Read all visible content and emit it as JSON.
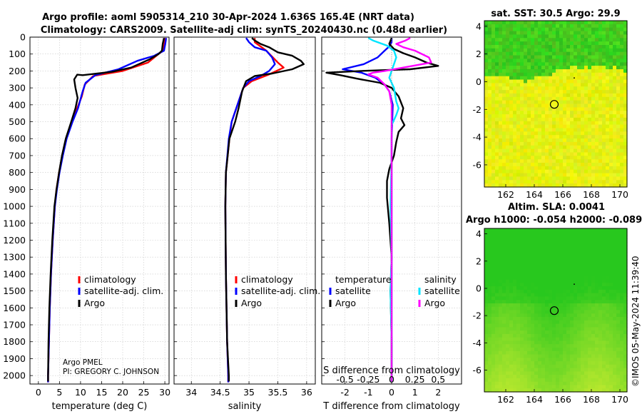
{
  "title": {
    "line1": "Argo profile: aoml 5905314_210 30-Apr-2024 1.636S 165.4E (NRT data)",
    "line2": "Climatology: CARS2009. Satellite-adj clim: synTS_20240430.nc (0.48d earlier)"
  },
  "colors": {
    "climatology": "#ff0000",
    "satellite": "#0000ff",
    "argo": "#000000",
    "sal_satellite": "#00e5ff",
    "sal_argo": "#ff00ff",
    "grid": "#b0b0b0"
  },
  "chart_data": [
    {
      "id": "temperature",
      "type": "line",
      "xlabel": "temperature (deg C)",
      "xlim": [
        -2,
        31
      ],
      "xticks": [
        0,
        5,
        10,
        15,
        20,
        25,
        30
      ],
      "ylim": [
        0,
        2050
      ],
      "yticks": [
        0,
        100,
        200,
        300,
        400,
        500,
        600,
        700,
        800,
        900,
        1000,
        1100,
        1200,
        1300,
        1400,
        1500,
        1600,
        1700,
        1800,
        1900,
        2000
      ],
      "legend": [
        "climatology",
        "satellite-adj. clim.",
        "Argo"
      ],
      "credit": [
        "Argo PMEL",
        "PI: GREGORY C. JOHNSON"
      ],
      "series": [
        {
          "name": "climatology",
          "color": "#ff0000",
          "points": [
            [
              30,
              5
            ],
            [
              29.9,
              40
            ],
            [
              29.6,
              80
            ],
            [
              28.5,
              100
            ],
            [
              26,
              150
            ],
            [
              20,
              200
            ],
            [
              13,
              230
            ],
            [
              11,
              280
            ],
            [
              10.3,
              350
            ],
            [
              9.2,
              420
            ],
            [
              8,
              500
            ],
            [
              6.6,
              600
            ],
            [
              5.7,
              700
            ],
            [
              4.9,
              800
            ],
            [
              4.3,
              900
            ],
            [
              3.9,
              1000
            ],
            [
              3.4,
              1200
            ],
            [
              3,
              1400
            ],
            [
              2.7,
              1600
            ],
            [
              2.5,
              1800
            ],
            [
              2.3,
              2000
            ],
            [
              2.3,
              2040
            ]
          ]
        },
        {
          "name": "satellite-adj. clim.",
          "color": "#0000ff",
          "points": [
            [
              30.3,
              5
            ],
            [
              30.1,
              40
            ],
            [
              29.8,
              80
            ],
            [
              27.5,
              110
            ],
            [
              23.5,
              140
            ],
            [
              19,
              190
            ],
            [
              13.5,
              225
            ],
            [
              11.2,
              270
            ],
            [
              10.5,
              320
            ],
            [
              9.4,
              420
            ],
            [
              8.1,
              500
            ],
            [
              6.7,
              600
            ],
            [
              5.8,
              700
            ],
            [
              5,
              800
            ],
            [
              4.4,
              900
            ],
            [
              3.9,
              1000
            ],
            [
              3.4,
              1200
            ],
            [
              3,
              1400
            ],
            [
              2.7,
              1600
            ],
            [
              2.5,
              1800
            ],
            [
              2.3,
              2000
            ],
            [
              2.3,
              2040
            ]
          ]
        },
        {
          "name": "Argo",
          "color": "#000000",
          "points": [
            [
              29.8,
              5
            ],
            [
              29.5,
              40
            ],
            [
              29.3,
              80
            ],
            [
              28.5,
              100
            ],
            [
              26.5,
              130
            ],
            [
              22,
              180
            ],
            [
              17.5,
              205
            ],
            [
              14,
              215
            ],
            [
              10.5,
              225
            ],
            [
              9.2,
              222
            ],
            [
              8.5,
              250
            ],
            [
              8.8,
              300
            ],
            [
              9.3,
              360
            ],
            [
              8.8,
              420
            ],
            [
              7.8,
              500
            ],
            [
              6.5,
              600
            ],
            [
              5.6,
              700
            ],
            [
              4.9,
              800
            ],
            [
              4.3,
              900
            ],
            [
              3.8,
              1000
            ],
            [
              3.3,
              1200
            ],
            [
              2.9,
              1400
            ],
            [
              2.6,
              1600
            ],
            [
              2.4,
              1800
            ],
            [
              2.3,
              2000
            ],
            [
              2.3,
              2035
            ]
          ]
        }
      ]
    },
    {
      "id": "salinity",
      "type": "line",
      "xlabel": "salinity",
      "xlim": [
        33.7,
        36.15
      ],
      "xticks": [
        34,
        34.5,
        35,
        35.5,
        36
      ],
      "ylim": [
        0,
        2050
      ],
      "legend": [
        "climatology",
        "satellite-adj. clim.",
        "Argo"
      ],
      "series": [
        {
          "name": "climatology",
          "color": "#ff0000",
          "points": [
            [
              35.1,
              5
            ],
            [
              35.1,
              30
            ],
            [
              35.2,
              55
            ],
            [
              35.3,
              80
            ],
            [
              35.5,
              150
            ],
            [
              35.6,
              180
            ],
            [
              35.35,
              220
            ],
            [
              35.05,
              260
            ],
            [
              34.9,
              300
            ],
            [
              34.8,
              400
            ],
            [
              34.7,
              500
            ],
            [
              34.66,
              600
            ],
            [
              34.6,
              800
            ],
            [
              34.59,
              1000
            ],
            [
              34.6,
              1400
            ],
            [
              34.62,
              1800
            ],
            [
              34.64,
              2000
            ],
            [
              34.64,
              2040
            ]
          ]
        },
        {
          "name": "satellite-adj. clim.",
          "color": "#0000ff",
          "points": [
            [
              34.95,
              5
            ],
            [
              35.0,
              30
            ],
            [
              35.1,
              60
            ],
            [
              35.3,
              80
            ],
            [
              35.4,
              120
            ],
            [
              35.45,
              160
            ],
            [
              35.35,
              200
            ],
            [
              35.2,
              230
            ],
            [
              35.0,
              260
            ],
            [
              34.9,
              300
            ],
            [
              34.8,
              400
            ],
            [
              34.7,
              500
            ],
            [
              34.65,
              600
            ],
            [
              34.6,
              800
            ],
            [
              34.59,
              1000
            ],
            [
              34.6,
              1400
            ],
            [
              34.62,
              1800
            ],
            [
              34.64,
              2000
            ],
            [
              34.64,
              2040
            ]
          ]
        },
        {
          "name": "Argo",
          "color": "#000000",
          "points": [
            [
              35.05,
              5
            ],
            [
              35.1,
              20
            ],
            [
              35.2,
              40
            ],
            [
              35.35,
              60
            ],
            [
              35.5,
              90
            ],
            [
              35.75,
              110
            ],
            [
              35.9,
              140
            ],
            [
              35.95,
              160
            ],
            [
              35.75,
              190
            ],
            [
              35.4,
              215
            ],
            [
              35.1,
              230
            ],
            [
              34.95,
              260
            ],
            [
              34.88,
              320
            ],
            [
              34.82,
              420
            ],
            [
              34.76,
              500
            ],
            [
              34.7,
              560
            ],
            [
              34.66,
              600
            ],
            [
              34.63,
              700
            ],
            [
              34.6,
              800
            ],
            [
              34.59,
              1000
            ],
            [
              34.6,
              1400
            ],
            [
              34.62,
              1800
            ],
            [
              34.65,
              2000
            ],
            [
              34.65,
              2035
            ]
          ]
        }
      ]
    },
    {
      "id": "difference",
      "type": "line",
      "xlabel": "T difference from climatology",
      "xlabel_top": "S difference from climatology",
      "xlim": [
        -3,
        3
      ],
      "xticks": [
        -2,
        -1,
        0,
        1,
        2
      ],
      "sticks_labels": [
        "-0.5",
        "-0.25",
        "0",
        "0.25",
        "0.5"
      ],
      "ylim": [
        0,
        2050
      ],
      "legend_temperature": {
        "title": "temperature",
        "items": [
          "satellite",
          "Argo"
        ]
      },
      "legend_salinity": {
        "title": "salinity",
        "items": [
          "satellite",
          "Argo"
        ]
      },
      "series": [
        {
          "name": "T satellite",
          "color": "#0000ff",
          "points": [
            [
              0,
              5
            ],
            [
              0,
              30
            ],
            [
              -0.1,
              55
            ],
            [
              -0.3,
              80
            ],
            [
              -0.6,
              120
            ],
            [
              -1.2,
              160
            ],
            [
              -2.1,
              190
            ],
            [
              -1.3,
              210
            ],
            [
              -0.7,
              240
            ],
            [
              -0.3,
              280
            ],
            [
              -0.1,
              320
            ],
            [
              0.05,
              400
            ],
            [
              0,
              600
            ],
            [
              0,
              1000
            ],
            [
              0,
              2035
            ]
          ]
        },
        {
          "name": "T Argo",
          "color": "#000000",
          "points": [
            [
              0,
              5
            ],
            [
              -0.1,
              40
            ],
            [
              0.1,
              70
            ],
            [
              0.5,
              95
            ],
            [
              1,
              120
            ],
            [
              1.5,
              150
            ],
            [
              2.0,
              170
            ],
            [
              0.8,
              190
            ],
            [
              -1.3,
              200
            ],
            [
              -2.8,
              210
            ],
            [
              -2.2,
              225
            ],
            [
              -1.5,
              245
            ],
            [
              -0.5,
              270
            ],
            [
              0,
              300
            ],
            [
              0.3,
              350
            ],
            [
              0.5,
              420
            ],
            [
              0.4,
              480
            ],
            [
              0.55,
              520
            ],
            [
              0.3,
              560
            ],
            [
              0.2,
              620
            ],
            [
              0.1,
              700
            ],
            [
              -0.1,
              780
            ],
            [
              -0.2,
              850
            ],
            [
              -0.2,
              950
            ],
            [
              -0.1,
              1100
            ],
            [
              0,
              1300
            ],
            [
              -0.05,
              1500
            ],
            [
              0,
              1800
            ],
            [
              0,
              2035
            ]
          ]
        },
        {
          "name": "S satellite",
          "color": "#00e5ff",
          "points": [
            [
              -1.0,
              5
            ],
            [
              -0.8,
              20
            ],
            [
              -0.2,
              50
            ],
            [
              0.1,
              80
            ],
            [
              0.2,
              120
            ],
            [
              0.1,
              160
            ],
            [
              0,
              200
            ],
            [
              -0.1,
              240
            ],
            [
              0.1,
              300
            ],
            [
              0.2,
              380
            ],
            [
              0.3,
              420
            ],
            [
              0.2,
              460
            ],
            [
              0,
              520
            ],
            [
              0,
              700
            ],
            [
              -0.05,
              1000
            ],
            [
              0,
              1300
            ],
            [
              -0.05,
              1500
            ],
            [
              0,
              1800
            ],
            [
              0,
              2035
            ]
          ]
        },
        {
          "name": "S Argo",
          "color": "#ff00ff",
          "points": [
            [
              0.8,
              5
            ],
            [
              0.6,
              20
            ],
            [
              0.2,
              40
            ],
            [
              0.5,
              60
            ],
            [
              1.0,
              80
            ],
            [
              1.6,
              120
            ],
            [
              1.7,
              150
            ],
            [
              0.5,
              180
            ],
            [
              -0.3,
              200
            ],
            [
              -0.8,
              210
            ],
            [
              -1.0,
              220
            ],
            [
              -0.6,
              240
            ],
            [
              -0.3,
              280
            ],
            [
              -0.1,
              320
            ],
            [
              0,
              400
            ],
            [
              0,
              500
            ],
            [
              0,
              700
            ],
            [
              0,
              1000
            ],
            [
              0,
              2035
            ]
          ]
        }
      ]
    },
    {
      "id": "sst_map",
      "type": "heatmap",
      "title": "sat. SST: 30.5 Argo: 29.9",
      "xlim": [
        160.5,
        170.5
      ],
      "ylim": [
        -7.6,
        4.4
      ],
      "xticks": [
        162,
        164,
        166,
        168,
        170
      ],
      "yticks": [
        4,
        2,
        0,
        -2,
        -4,
        -6
      ],
      "profile_location": [
        165.4,
        -1.636
      ]
    },
    {
      "id": "sla_map",
      "type": "heatmap",
      "title_line1": "Altim. SLA: 0.0041",
      "title_line2": "Argo h1000: -0.054 h2000: -0.089",
      "xlim": [
        160.5,
        170.5
      ],
      "ylim": [
        -7.6,
        4.4
      ],
      "xticks": [
        162,
        164,
        166,
        168,
        170
      ],
      "yticks": [
        4,
        2,
        0,
        -2,
        -4,
        -6
      ],
      "profile_location": [
        165.4,
        -1.636
      ]
    }
  ],
  "footer": {
    "timestamp": "©IMOS 05-May-2024 11:39:40"
  }
}
